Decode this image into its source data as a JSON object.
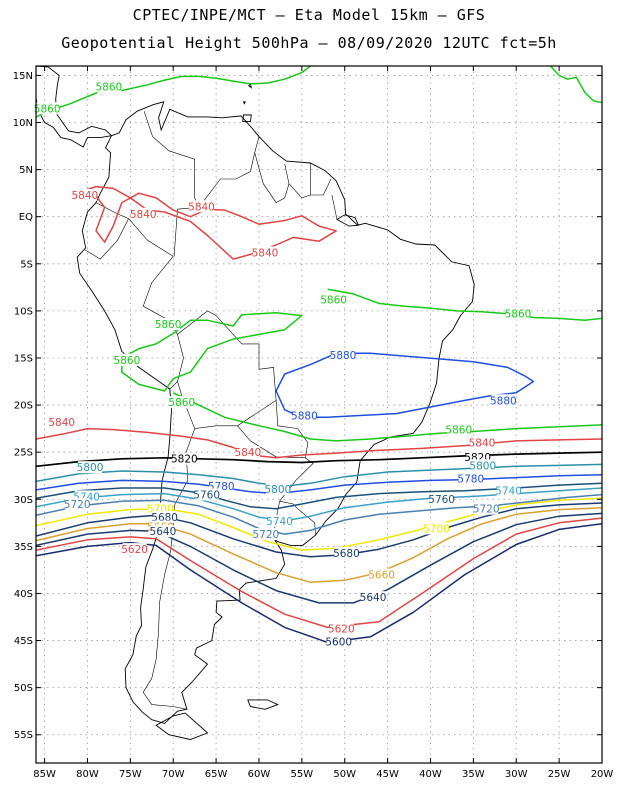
{
  "header": {
    "line1": "CPTEC/INPE/MCT –  Eta Model 15km – GFS",
    "line2": "Geopotential Height 500hPa – 08/09/2020 12UTC fct=5h"
  },
  "map": {
    "lat_labels": [
      "15N",
      "10N",
      "5N",
      "EQ",
      "5S",
      "10S",
      "15S",
      "20S",
      "25S",
      "30S",
      "35S",
      "40S",
      "45S",
      "50S",
      "55S"
    ],
    "lon_labels": [
      "85W",
      "80W",
      "75W",
      "70W",
      "65W",
      "60W",
      "55W",
      "50W",
      "45W",
      "40W",
      "35W",
      "30W",
      "25W",
      "20W"
    ],
    "extent": {
      "lon": [
        -86,
        -20
      ],
      "lat": [
        -58,
        16
      ]
    },
    "grid": "dotted"
  },
  "contours": [
    {
      "value": "5880",
      "color": "#1f4fe0"
    },
    {
      "value": "5860",
      "color": "#19c819"
    },
    {
      "value": "5840",
      "color": "#e04444"
    },
    {
      "value": "5820",
      "color": "#000000"
    },
    {
      "value": "5800",
      "color": "#2a90a8"
    },
    {
      "value": "5780",
      "color": "#1f4fe0"
    },
    {
      "value": "5760",
      "color": "#1a5078"
    },
    {
      "value": "5740",
      "color": "#3aa0c8"
    },
    {
      "value": "5720",
      "color": "#4a7fb0"
    },
    {
      "value": "5700",
      "color": "#f0e800"
    },
    {
      "value": "5680",
      "color": "#1a3a70"
    },
    {
      "value": "5660",
      "color": "#d9a030"
    },
    {
      "value": "5640",
      "color": "#1a3a70"
    },
    {
      "value": "5620",
      "color": "#e04444"
    },
    {
      "value": "5600",
      "color": "#1a2a70"
    }
  ],
  "labels": [
    {
      "text": "5860",
      "color": "#19c819",
      "lon": -77.5,
      "lat": 13.7
    },
    {
      "text": "5860",
      "color": "#19c819",
      "lon": -84.7,
      "lat": 11.4
    },
    {
      "text": "5840",
      "color": "#e04444",
      "lon": -80.3,
      "lat": 2.2
    },
    {
      "text": "5840",
      "color": "#e04444",
      "lon": -73.5,
      "lat": 0.2
    },
    {
      "text": "5840",
      "color": "#e04444",
      "lon": -66.7,
      "lat": 1.0
    },
    {
      "text": "5840",
      "color": "#e04444",
      "lon": -59.3,
      "lat": -3.9
    },
    {
      "text": "5860",
      "color": "#19c819",
      "lon": -51.3,
      "lat": -8.9
    },
    {
      "text": "5860",
      "color": "#19c819",
      "lon": -29.8,
      "lat": -10.4
    },
    {
      "text": "5860",
      "color": "#19c819",
      "lon": -70.6,
      "lat": -11.5
    },
    {
      "text": "5880",
      "color": "#1f4fe0",
      "lon": -50.2,
      "lat": -14.8
    },
    {
      "text": "5860",
      "color": "#19c819",
      "lon": -75.4,
      "lat": -15.3
    },
    {
      "text": "5880",
      "color": "#1f4fe0",
      "lon": -31.5,
      "lat": -19.6
    },
    {
      "text": "5860",
      "color": "#19c819",
      "lon": -69.0,
      "lat": -19.8
    },
    {
      "text": "5880",
      "color": "#1f4fe0",
      "lon": -54.7,
      "lat": -21.2
    },
    {
      "text": "5840",
      "color": "#e04444",
      "lon": -83.0,
      "lat": -21.9
    },
    {
      "text": "5860",
      "color": "#19c819",
      "lon": -36.7,
      "lat": -22.7
    },
    {
      "text": "5840",
      "color": "#e04444",
      "lon": -34.0,
      "lat": -24.1
    },
    {
      "text": "5840",
      "color": "#e04444",
      "lon": -61.3,
      "lat": -25.1
    },
    {
      "text": "5820",
      "color": "#000000",
      "lon": -68.7,
      "lat": -25.8
    },
    {
      "text": "5820",
      "color": "#000000",
      "lon": -34.5,
      "lat": -25.6
    },
    {
      "text": "5800",
      "color": "#2a90a8",
      "lon": -79.7,
      "lat": -26.7
    },
    {
      "text": "5800",
      "color": "#2a90a8",
      "lon": -33.9,
      "lat": -26.5
    },
    {
      "text": "5780",
      "color": "#1f4fe0",
      "lon": -35.3,
      "lat": -27.9
    },
    {
      "text": "5780",
      "color": "#1f4fe0",
      "lon": -64.4,
      "lat": -28.7
    },
    {
      "text": "5800",
      "color": "#2a90a8",
      "lon": -57.8,
      "lat": -29.0
    },
    {
      "text": "5740",
      "color": "#3aa0c8",
      "lon": -30.9,
      "lat": -29.2
    },
    {
      "text": "5760",
      "color": "#1a5078",
      "lon": -66.1,
      "lat": -29.6
    },
    {
      "text": "5740",
      "color": "#3aa0c8",
      "lon": -80.1,
      "lat": -29.8
    },
    {
      "text": "5760",
      "color": "#1a5078",
      "lon": -38.7,
      "lat": -30.1
    },
    {
      "text": "5720",
      "color": "#4a7fb0",
      "lon": -81.2,
      "lat": -30.6
    },
    {
      "text": "5720",
      "color": "#4a7fb0",
      "lon": -33.5,
      "lat": -31.1
    },
    {
      "text": "5700",
      "color": "#f0e800",
      "lon": -71.5,
      "lat": -31.1
    },
    {
      "text": "5680",
      "color": "#1a3a70",
      "lon": -71.0,
      "lat": -32.0
    },
    {
      "text": "5740",
      "color": "#3aa0c8",
      "lon": -57.6,
      "lat": -32.4
    },
    {
      "text": "5660",
      "color": "#d9a030",
      "lon": -71.5,
      "lat": -33.0
    },
    {
      "text": "5640",
      "color": "#1a3a70",
      "lon": -71.2,
      "lat": -33.5
    },
    {
      "text": "5720",
      "color": "#4a7fb0",
      "lon": -59.2,
      "lat": -33.8
    },
    {
      "text": "5700",
      "color": "#f0e800",
      "lon": -39.3,
      "lat": -33.2
    },
    {
      "text": "5620",
      "color": "#e04444",
      "lon": -74.5,
      "lat": -35.4
    },
    {
      "text": "5680",
      "color": "#1a3a70",
      "lon": -49.8,
      "lat": -35.8
    },
    {
      "text": "5660",
      "color": "#d9a030",
      "lon": -45.7,
      "lat": -38.1
    },
    {
      "text": "5640",
      "color": "#1a3a70",
      "lon": -46.7,
      "lat": -40.5
    },
    {
      "text": "5620",
      "color": "#e04444",
      "lon": -50.4,
      "lat": -43.8
    },
    {
      "text": "5600",
      "color": "#1a2a70",
      "lon": -50.7,
      "lat": -45.2
    }
  ]
}
